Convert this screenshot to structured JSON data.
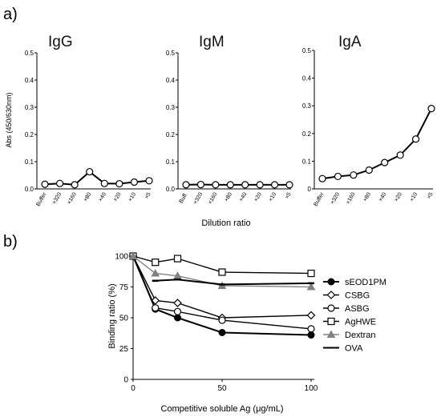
{
  "panel_labels": {
    "a": "a)",
    "b": "b)"
  },
  "chart_data": [
    {
      "type": "line",
      "title": "IgG",
      "ylabel": "Abs (450/630nm)",
      "categories": [
        "Buffer",
        "×320",
        "×160",
        "×80",
        "×40",
        "×20",
        "×10",
        "×5"
      ],
      "values": [
        0.017,
        0.02,
        0.015,
        0.063,
        0.02,
        0.019,
        0.025,
        0.03
      ],
      "ylim": [
        0,
        0.5
      ],
      "yticks": [
        "0.0",
        "0.1",
        "0.2",
        "0.3",
        "0.4",
        "0.5"
      ]
    },
    {
      "type": "line",
      "title": "IgM",
      "xlabel": "Dilution ratio",
      "categories": [
        "Buff.",
        "×320",
        "×160",
        "×80",
        "×40",
        "×20",
        "×10",
        "×5"
      ],
      "values": [
        0.015,
        0.016,
        0.015,
        0.015,
        0.015,
        0.015,
        0.015,
        0.015
      ],
      "ylim": [
        0,
        0.5
      ],
      "yticks": [
        "0.0",
        "0.1",
        "0.2",
        "0.3",
        "0.4",
        "0.5"
      ]
    },
    {
      "type": "line",
      "title": "IgA",
      "categories": [
        "Buffer",
        "×320",
        "×160",
        "×80",
        "×40",
        "×20",
        "×10",
        "×5"
      ],
      "values": [
        0.037,
        0.045,
        0.05,
        0.068,
        0.095,
        0.122,
        0.18,
        0.29
      ],
      "ylim": [
        0,
        0.5
      ],
      "yticks": [
        "0",
        "0.1",
        "0.2",
        "0.3",
        "0.4",
        "0.5"
      ]
    },
    {
      "type": "line",
      "xlabel": "Competitive soluble Ag (μg/mL)",
      "ylabel": "Binding ratio (%)",
      "xlim": [
        0,
        100
      ],
      "ylim": [
        0,
        100
      ],
      "xticks": [
        "0",
        "50",
        "100"
      ],
      "yticks": [
        "0",
        "25",
        "50",
        "75",
        "100"
      ],
      "legend": "right",
      "series": [
        {
          "name": "sEOD1PM",
          "marker": "filled-circle",
          "color": "#000000",
          "x": [
            0,
            12.5,
            25,
            50,
            100
          ],
          "y": [
            100,
            57,
            50,
            38,
            36
          ]
        },
        {
          "name": "CSBG",
          "marker": "diamond",
          "color": "#000000",
          "x": [
            0,
            12.5,
            25,
            50,
            100
          ],
          "y": [
            100,
            64,
            62,
            50,
            52
          ]
        },
        {
          "name": "ASBG",
          "marker": "open-circle",
          "color": "#000000",
          "x": [
            0,
            12.5,
            25,
            50,
            100
          ],
          "y": [
            100,
            58,
            55,
            48,
            41
          ]
        },
        {
          "name": "AgHWE",
          "marker": "open-square",
          "color": "#000000",
          "x": [
            0,
            12.5,
            25,
            50,
            100
          ],
          "y": [
            100,
            95,
            98,
            87,
            86
          ]
        },
        {
          "name": "Dextran",
          "marker": "triangle",
          "color": "#808080",
          "x": [
            0,
            12.5,
            25,
            50,
            100
          ],
          "y": [
            100,
            86,
            84,
            76,
            75
          ]
        },
        {
          "name": "OVA",
          "marker": "dash",
          "color": "#000000",
          "x": [
            12.5,
            25,
            50,
            100
          ],
          "y": [
            80,
            81,
            77,
            78
          ]
        }
      ]
    }
  ]
}
